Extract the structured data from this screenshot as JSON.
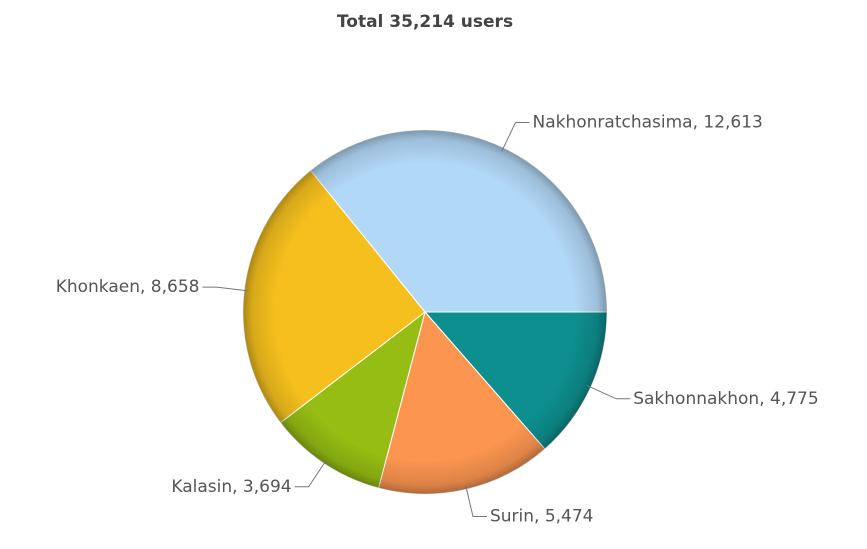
{
  "chart_data": {
    "type": "pie",
    "title": "Total 35,214 users",
    "categories": null,
    "values": [
      4775,
      5474,
      3694,
      8658,
      12613
    ],
    "value_labels": [
      "Sakhonnakhon, 4,775",
      "Surin, 5,474",
      "Kalasin, 3,694",
      "Khonkaen, 8,658",
      "Nakhonratchasima, 12,613"
    ],
    "colors": [
      "#0e8f8f",
      "#fb9550",
      "#95bd13",
      "#f5c01d",
      "#b2d8f7"
    ],
    "start_angle": 0
  }
}
